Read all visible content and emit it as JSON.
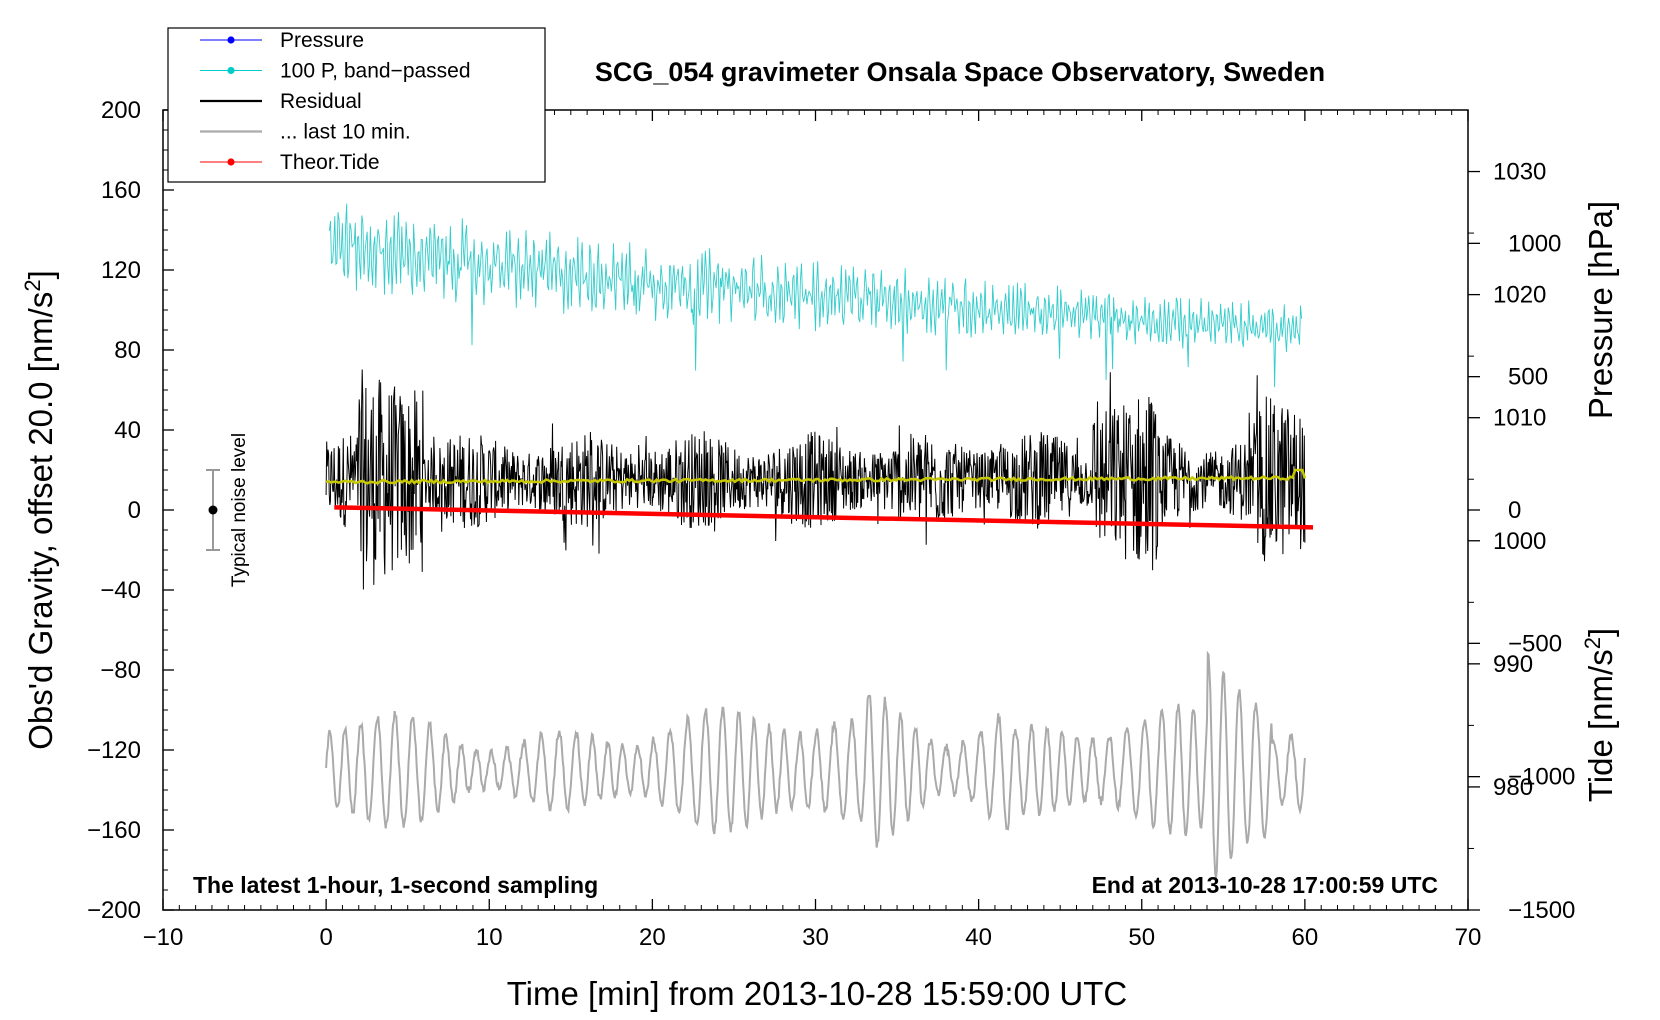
{
  "chart_data": {
    "type": "line",
    "title": "SCG_054 gravimeter Onsala Space Observatory, Sweden",
    "note_left": "The latest 1-hour, 1-second sampling",
    "note_right": "End at 2013-10-28 17:00:59 UTC",
    "xlabel": "Time [min] from 2013-10-28 15:59:00 UTC",
    "ylabel_left": "Obs'd Gravity, offset 20.0 [nm/s",
    "ylabel_left_sup": "2",
    "ylabel_left_close": "]",
    "ylabel_pressure": "Pressure [hPa]",
    "ylabel_tide": "Tide [nm/s",
    "ylabel_tide_sup": "2",
    "ylabel_tide_close": "]",
    "xlim": [
      -10,
      70
    ],
    "ylim_left": [
      -200,
      200
    ],
    "pressure_lim": [
      970,
      1035
    ],
    "tide_lim": [
      -1500,
      1500
    ],
    "x_ticks": [
      "−10",
      "0",
      "10",
      "20",
      "30",
      "40",
      "50",
      "60",
      "70"
    ],
    "y_ticks_left": [
      "200",
      "160",
      "120",
      "80",
      "40",
      "0",
      "−40",
      "−80",
      "−120",
      "−160",
      "−200"
    ],
    "pressure_ticks": [
      "1030",
      "1020",
      "1010",
      "1000",
      "990",
      "980"
    ],
    "tide_ticks": [
      "1000",
      "500",
      "0",
      "−500",
      "−1000",
      "−1500"
    ],
    "noise_label": "Typical noise level",
    "noise_level": {
      "x": -7,
      "center": 0,
      "low": -20,
      "high": 20
    },
    "legend": [
      {
        "label": "Pressure",
        "color": "#0000ff",
        "marker": true
      },
      {
        "label": "100 P, band−passed",
        "color": "#00cccc",
        "marker": true
      },
      {
        "label": "Residual",
        "color": "#000000",
        "marker": false
      },
      {
        "label": "... last 10 min.",
        "color": "#aaaaaa",
        "marker": false
      },
      {
        "label": "Theor.Tide",
        "color": "#ff0000",
        "marker": true
      }
    ],
    "series": [
      {
        "name": "100 P, band-passed",
        "axis": "left",
        "color": "#33cccc",
        "x_range": [
          0.2,
          59.8
        ],
        "trend": [
          135,
          90
        ],
        "amplitude": 18
      },
      {
        "name": "Residual",
        "axis": "left",
        "color": "#000000",
        "x_range": [
          0,
          60
        ],
        "center": 15,
        "amplitude": 35
      },
      {
        "name": "Residual smoothed",
        "axis": "left",
        "color": "#c8c800",
        "x_range": [
          0,
          60
        ],
        "values": [
          14,
          16,
          20
        ]
      },
      {
        "name": "... last 10 min.",
        "axis": "left",
        "color": "#aaaaaa",
        "x_range": [
          0,
          60
        ],
        "center": -130,
        "amplitude": 35
      },
      {
        "name": "Theor.Tide",
        "axis": "tide",
        "color": "#ff0000",
        "x": [
          0.5,
          60.5
        ],
        "values": [
          10,
          -65
        ]
      }
    ]
  }
}
